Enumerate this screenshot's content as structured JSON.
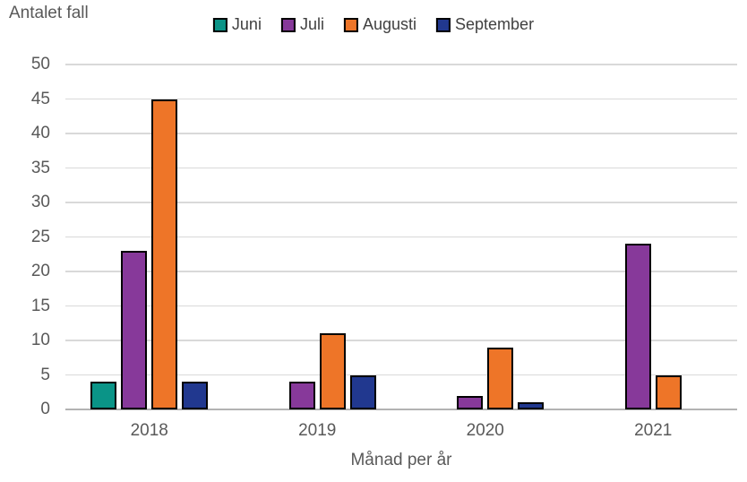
{
  "title": "Antalet fall",
  "x_axis_title": "Månad per år",
  "chart_data": {
    "type": "bar",
    "title": "Antalet fall",
    "xlabel": "Månad per år",
    "ylabel": "",
    "categories": [
      "2018",
      "2019",
      "2020",
      "2021"
    ],
    "series": [
      {
        "name": "Juni",
        "color": "#0a9487",
        "values": [
          4,
          0,
          0,
          0
        ]
      },
      {
        "name": "Juli",
        "color": "#87399a",
        "values": [
          23,
          4,
          2,
          24
        ]
      },
      {
        "name": "Augusti",
        "color": "#ee7528",
        "values": [
          45,
          11,
          9,
          5
        ]
      },
      {
        "name": "September",
        "color": "#21388f",
        "values": [
          4,
          5,
          1,
          0
        ]
      }
    ],
    "ylim": [
      0,
      50
    ],
    "ytick_step": 5,
    "yticks": [
      0,
      5,
      10,
      15,
      20,
      25,
      30,
      35,
      40,
      45,
      50
    ],
    "grid": true,
    "legend_position": "top",
    "bar_border_color": "#000000"
  },
  "colors": {
    "text": "#595959",
    "legend_text": "#404040",
    "gridline": "#d9d9d9",
    "axis_line": "#b3b3b3",
    "background": "#ffffff"
  }
}
